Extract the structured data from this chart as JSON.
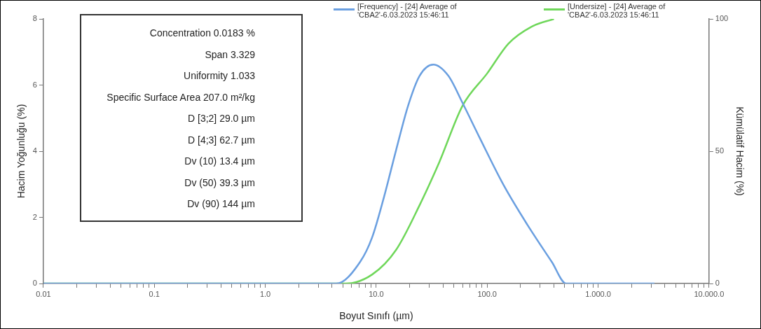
{
  "chart_data": {
    "type": "line",
    "xlabel": "Boyut Sınıfı (µm)",
    "ylabel": "Hacim Yoğunluğu (%)",
    "y2label": "Kümülatif Hacim (%)",
    "log": "x",
    "grid": false,
    "legend": "top",
    "marker": "none",
    "line_style": "solid",
    "xlim": [
      0.01,
      10000
    ],
    "xticks": [
      {
        "value": 0.01,
        "label": "0.01"
      },
      {
        "value": 0.02,
        "label": null
      },
      {
        "value": 0.03,
        "label": null
      },
      {
        "value": 0.04,
        "label": null
      },
      {
        "value": 0.05,
        "label": null
      },
      {
        "value": 0.06,
        "label": null
      },
      {
        "value": 0.07,
        "label": null
      },
      {
        "value": 0.08,
        "label": null
      },
      {
        "value": 0.09,
        "label": null
      },
      {
        "value": 0.1,
        "label": "0.1"
      },
      {
        "value": 0.2,
        "label": null
      },
      {
        "value": 0.3,
        "label": null
      },
      {
        "value": 0.4,
        "label": null
      },
      {
        "value": 0.5,
        "label": null
      },
      {
        "value": 0.6,
        "label": null
      },
      {
        "value": 0.7,
        "label": null
      },
      {
        "value": 0.8,
        "label": null
      },
      {
        "value": 0.9,
        "label": null
      },
      {
        "value": 1,
        "label": "1.0"
      },
      {
        "value": 2,
        "label": null
      },
      {
        "value": 3,
        "label": null
      },
      {
        "value": 4,
        "label": null
      },
      {
        "value": 5,
        "label": null
      },
      {
        "value": 6,
        "label": null
      },
      {
        "value": 7,
        "label": null
      },
      {
        "value": 8,
        "label": null
      },
      {
        "value": 9,
        "label": null
      },
      {
        "value": 10,
        "label": "10.0"
      },
      {
        "value": 20,
        "label": null
      },
      {
        "value": 30,
        "label": null
      },
      {
        "value": 40,
        "label": null
      },
      {
        "value": 50,
        "label": null
      },
      {
        "value": 60,
        "label": null
      },
      {
        "value": 70,
        "label": null
      },
      {
        "value": 80,
        "label": null
      },
      {
        "value": 90,
        "label": null
      },
      {
        "value": 100,
        "label": "100.0"
      },
      {
        "value": 200,
        "label": null
      },
      {
        "value": 300,
        "label": null
      },
      {
        "value": 400,
        "label": null
      },
      {
        "value": 500,
        "label": null
      },
      {
        "value": 600,
        "label": null
      },
      {
        "value": 700,
        "label": null
      },
      {
        "value": 800,
        "label": null
      },
      {
        "value": 900,
        "label": null
      },
      {
        "value": 1000,
        "label": "1.000.0"
      },
      {
        "value": 2000,
        "label": null
      },
      {
        "value": 3000,
        "label": null
      },
      {
        "value": 4000,
        "label": null
      },
      {
        "value": 5000,
        "label": null
      },
      {
        "value": 6000,
        "label": null
      },
      {
        "value": 7000,
        "label": null
      },
      {
        "value": 8000,
        "label": null
      },
      {
        "value": 9000,
        "label": null
      },
      {
        "value": 10000,
        "label": "10.000.0"
      }
    ],
    "ylim": [
      0,
      8
    ],
    "yticks": [
      0,
      2,
      4,
      6,
      8
    ],
    "y2lim": [
      0,
      100
    ],
    "y2ticks": [
      0,
      50,
      100
    ],
    "series": [
      {
        "name": "[Frequency] - [24] Average of 'CBA2'-6.03.2023 15:46:11",
        "color": "#6a9fe0",
        "x": [
          0.01,
          4.37,
          7.15,
          9.2,
          11.7,
          15.1,
          19.4,
          24.6,
          32.7,
          44.7,
          60.2,
          86.1,
          141,
          230,
          383,
          515,
          3220
        ],
        "values": [
          0,
          0,
          0.65,
          1.4,
          2.59,
          4.03,
          5.38,
          6.28,
          6.62,
          6.28,
          5.45,
          4.39,
          2.97,
          1.78,
          0.65,
          0,
          0
        ]
      },
      {
        "name": "[Undersize] - [24] Average of 'CBA2'-6.03.2023 15:46:11",
        "color": "#6fd75a",
        "axis": "y2",
        "x": [
          0.01,
          5.3,
          9.2,
          15.1,
          24.6,
          36.8,
          60.2,
          100,
          156,
          250,
          400
        ],
        "values": [
          0,
          0,
          3.4,
          12.7,
          29.6,
          45.6,
          67.3,
          79.4,
          90.7,
          97,
          100
        ]
      }
    ],
    "annotations": [
      "Concentration 0.0183 %",
      "Span 3.329",
      "Uniformity 1.033",
      "Specific Surface Area 207.0 m²/kg",
      "D [3;2] 29.0 µm",
      "D [4;3] 62.7 µm",
      "Dv (10) 13.4 µm",
      "Dv (50) 39.3 µm",
      "Dv (90) 144 µm"
    ]
  }
}
